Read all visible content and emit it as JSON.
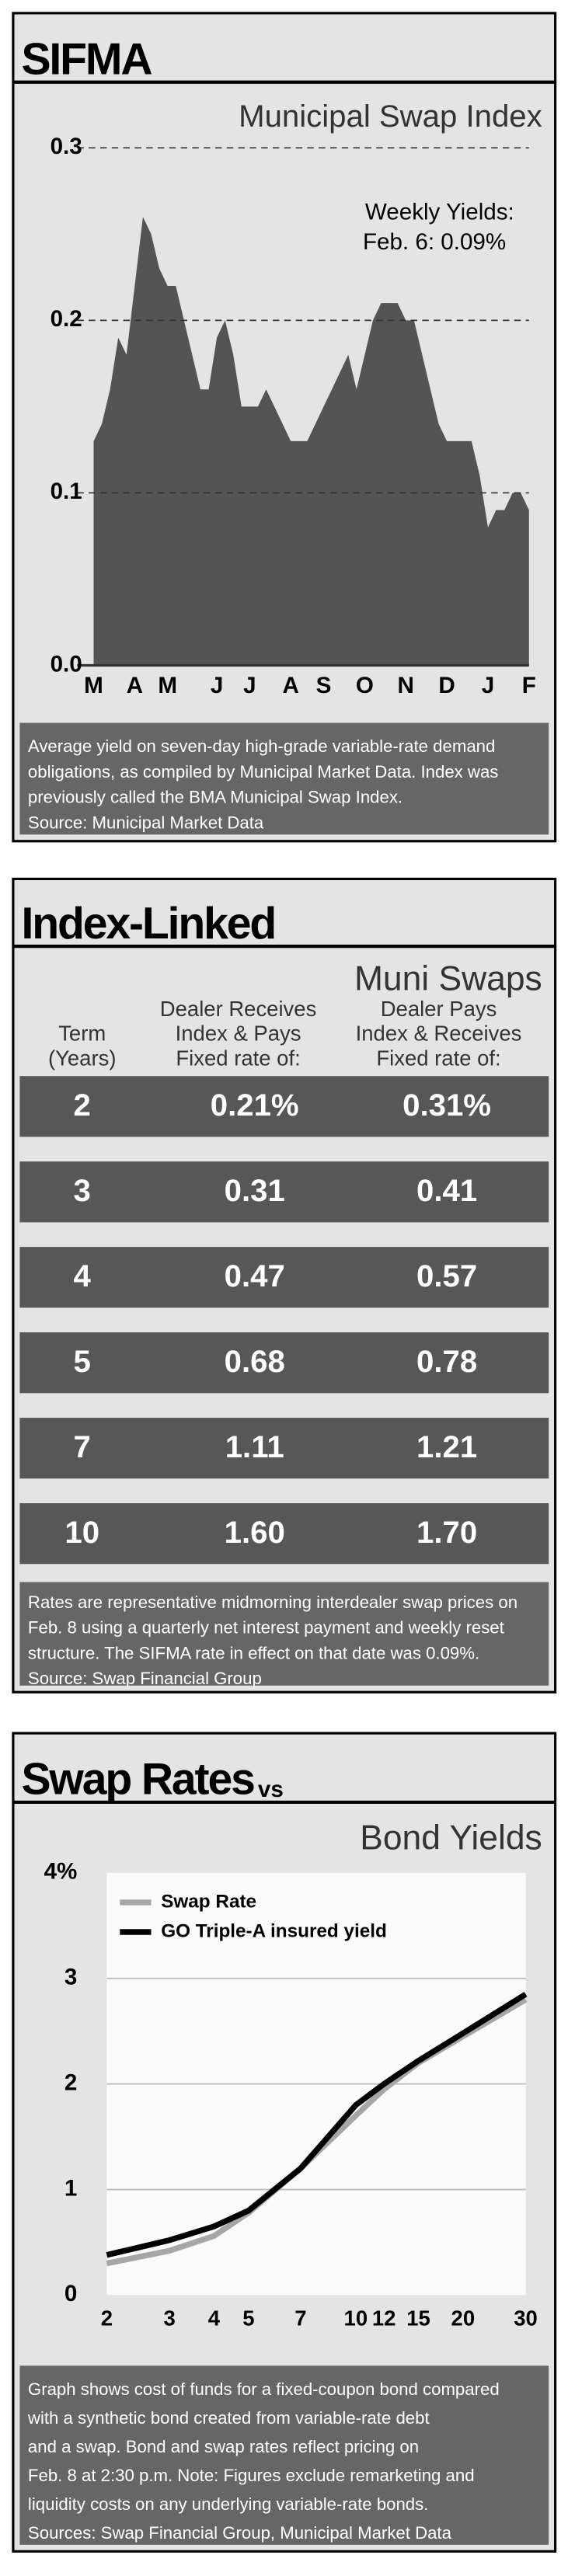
{
  "chart_data": [
    {
      "type": "area",
      "title": "SIFMA",
      "subtitle": "Municipal Swap Index",
      "annotation": [
        "Weekly Yields:",
        "Feb. 6: 0.09%"
      ],
      "categories": [
        "M",
        null,
        null,
        null,
        null,
        "A",
        null,
        null,
        null,
        "M",
        null,
        null,
        null,
        null,
        null,
        "J",
        null,
        null,
        null,
        "J",
        null,
        null,
        null,
        null,
        "A",
        null,
        null,
        null,
        "S",
        null,
        null,
        null,
        null,
        "O",
        null,
        null,
        null,
        null,
        "N",
        null,
        null,
        null,
        null,
        "D",
        null,
        null,
        null,
        null,
        "J",
        null,
        null,
        null,
        null,
        "F"
      ],
      "values": [
        0.13,
        0.14,
        0.16,
        0.19,
        0.18,
        0.22,
        0.26,
        0.25,
        0.23,
        0.22,
        0.22,
        0.2,
        0.18,
        0.16,
        0.16,
        0.19,
        0.2,
        0.18,
        0.15,
        0.15,
        0.15,
        0.16,
        0.15,
        0.14,
        0.13,
        0.13,
        0.13,
        0.14,
        0.15,
        0.16,
        0.17,
        0.18,
        0.16,
        0.18,
        0.2,
        0.21,
        0.21,
        0.21,
        0.2,
        0.2,
        0.18,
        0.16,
        0.14,
        0.13,
        0.13,
        0.13,
        0.13,
        0.11,
        0.08,
        0.09,
        0.09,
        0.1,
        0.1,
        0.09
      ],
      "color": "#545454",
      "ylim": [
        0,
        0.3
      ],
      "yticks": [
        {
          "value": 0,
          "label": "0.0"
        },
        0.1,
        0.2,
        0.3
      ],
      "grid": true,
      "note": [
        "Average yield on seven-day high-grade variable-rate demand",
        "obligations, as compiled by Municipal Market Data.  Index was",
        "previously called the BMA Municipal Swap Index.",
        "Source: Municipal Market Data"
      ]
    },
    {
      "type": "line",
      "title": "Swap Rates",
      "title_suffix": "vs",
      "subtitle": "Bond Yields",
      "x": [
        2,
        3,
        4,
        5,
        7,
        10,
        12,
        15,
        20,
        30
      ],
      "xscale": "log",
      "xlim": [
        2,
        30
      ],
      "xticks": [
        2,
        3,
        4,
        5,
        7,
        10,
        12,
        15,
        20,
        30
      ],
      "ylim": [
        0,
        4
      ],
      "yticks": [
        0,
        1,
        2,
        3,
        {
          "value": 4,
          "label": "4%"
        }
      ],
      "grid": true,
      "legend": "top-left",
      "series": [
        {
          "name": "Swap Rate",
          "color": "#a6a6a6",
          "values": [
            0.3,
            0.42,
            0.56,
            0.78,
            1.2,
            1.7,
            1.95,
            2.2,
            2.45,
            2.8
          ]
        },
        {
          "name": "GO Triple-A insured yield",
          "color": "#000000",
          "values": [
            0.38,
            0.52,
            0.65,
            0.8,
            1.2,
            1.8,
            2.0,
            2.22,
            2.48,
            2.85
          ]
        }
      ],
      "note": [
        "Graph shows cost of funds for a fixed-coupon bond compared",
        "with a synthetic bond created from variable-rate debt",
        "and a swap. Bond and swap rates reflect pricing on",
        "Feb. 8 at 2:30 p.m. Note: Figures exclude remarketing and",
        "liquidity costs on any underlying variable-rate bonds.",
        "Sources: Swap Financial Group, Municipal Market Data"
      ]
    }
  ],
  "table": {
    "title": "Index-Linked",
    "subtitle": "Muni Swaps",
    "header": [
      [
        "Term",
        "(Years)"
      ],
      [
        "Dealer Receives",
        "Index & Pays",
        "Fixed rate of:"
      ],
      [
        "Dealer Pays",
        "Index & Receives",
        "Fixed rate of:"
      ]
    ],
    "rows": [
      [
        "2",
        "0.21%",
        "0.31%"
      ],
      [
        "3",
        "0.31",
        "0.41"
      ],
      [
        "4",
        "0.47",
        "0.57"
      ],
      [
        "5",
        "0.68",
        "0.78"
      ],
      [
        "7",
        "1.11",
        "1.21"
      ],
      [
        "10",
        "1.60",
        "1.70"
      ]
    ],
    "note": [
      "Rates are representative midmorning interdealer swap prices on",
      "Feb. 8 using a quarterly net interest payment and weekly reset",
      "structure. The SIFMA rate in effect on that date was 0.09%.",
      "Source: Swap Financial Group"
    ]
  }
}
